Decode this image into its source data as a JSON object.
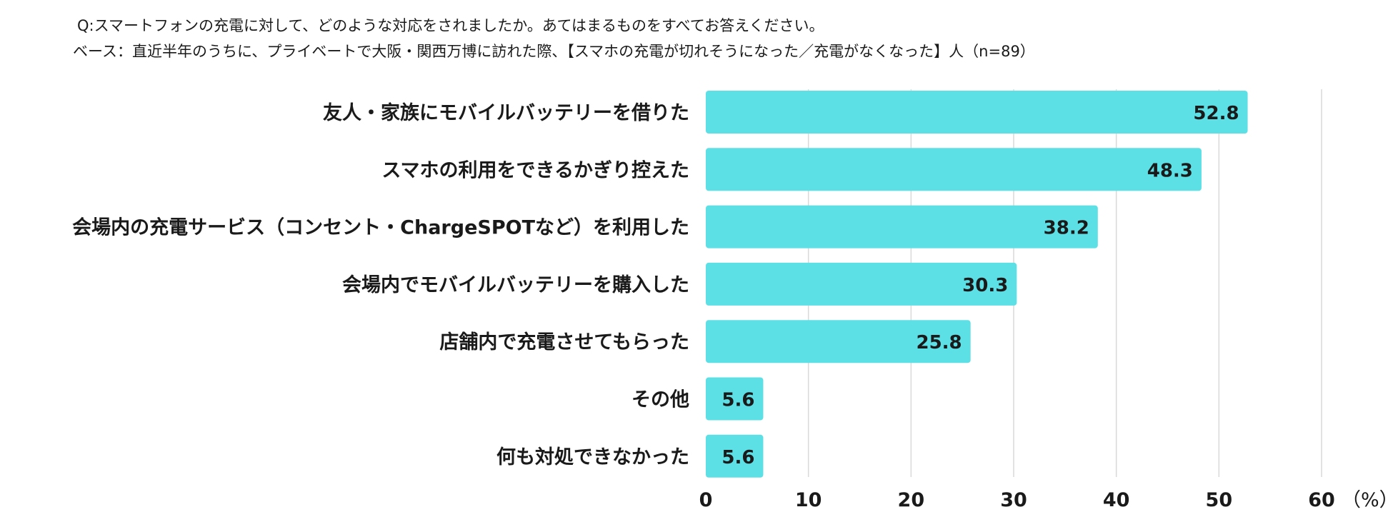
{
  "header": {
    "question": "Q:スマートフォンの充電に対して、どのような対応をされましたか。あてはまるものをすべてお答えください。",
    "base": "ベース：直近半年のうちに、プライベートで大阪・関西万博に訪れた際、【スマホの充電が切れそうになった／充電がなくなった】人（n=89）"
  },
  "chart_data": {
    "type": "bar",
    "orientation": "horizontal",
    "categories": [
      "友人・家族にモバイルバッテリーを借りた",
      "スマホの利用をできるかぎり控えた",
      "会場内の充電サービス（コンセント・ChargeSPOTなど）を利用した",
      "会場内でモバイルバッテリーを購入した",
      "店舗内で充電させてもらった",
      "その他",
      "何も対処できなかった"
    ],
    "values": [
      52.8,
      48.3,
      38.2,
      30.3,
      25.8,
      5.6,
      5.6
    ],
    "value_labels": [
      "52.8",
      "48.3",
      "38.2",
      "30.3",
      "25.8",
      "5.6",
      "5.6"
    ],
    "xlim": [
      0,
      60
    ],
    "xticks": [
      "0",
      "10",
      "20",
      "30",
      "40",
      "50",
      "60"
    ],
    "xunit": "（%）",
    "grid": true,
    "bar_color": "#5ce0e6",
    "grid_color": "#d9d9d9"
  }
}
